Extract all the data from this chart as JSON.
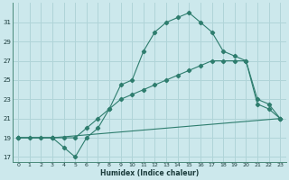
{
  "xlabel": "Humidex (Indice chaleur)",
  "bg_color": "#cce8ec",
  "grid_color": "#b0d4d8",
  "line_color": "#2e7d6e",
  "xlim": [
    -0.5,
    23.5
  ],
  "ylim": [
    16.5,
    33
  ],
  "yticks": [
    17,
    19,
    21,
    23,
    25,
    27,
    29,
    31
  ],
  "xticks": [
    0,
    1,
    2,
    3,
    4,
    5,
    6,
    7,
    8,
    9,
    10,
    11,
    12,
    13,
    14,
    15,
    16,
    17,
    18,
    19,
    20,
    21,
    22,
    23
  ],
  "series": [
    {
      "x": [
        0,
        1,
        2,
        3,
        4,
        5,
        6,
        7,
        8,
        9,
        10,
        11,
        12,
        13,
        14,
        15,
        16,
        17,
        18,
        19,
        20,
        21,
        22,
        23
      ],
      "y": [
        19,
        19,
        19,
        19,
        18,
        17,
        19,
        20,
        22,
        24.5,
        25,
        28,
        30,
        31,
        31.5,
        32,
        31,
        30,
        28,
        27.5,
        27,
        23,
        22.5,
        21
      ]
    },
    {
      "x": [
        0,
        3,
        4,
        5,
        6,
        7,
        8,
        9,
        10,
        11,
        12,
        13,
        14,
        15,
        16,
        17,
        18,
        19,
        20,
        21,
        22,
        23
      ],
      "y": [
        19,
        19,
        19,
        19,
        20,
        21,
        22,
        23,
        23.5,
        24,
        24.5,
        25,
        25.5,
        26,
        26.5,
        27,
        27,
        27,
        27,
        22.5,
        22,
        21
      ]
    },
    {
      "x": [
        0,
        3,
        23
      ],
      "y": [
        19,
        19,
        21
      ]
    }
  ]
}
